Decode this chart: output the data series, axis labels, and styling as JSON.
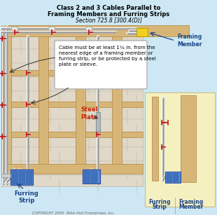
{
  "title_line1": "Class 2 and 3 Cables Parallel to",
  "title_line2": "Framing Members and Furring Strips",
  "title_line3": "Section 725.8 [300.4(D)]",
  "bg_color": "#cde8f4",
  "wood_color": "#d8b87a",
  "wood_edge": "#b89050",
  "wall_bg": "#e0d8c8",
  "mortar_color": "#b8b0a0",
  "cable_color": "#e0e0e0",
  "cable_edge": "#999999",
  "box_color": "#5588cc",
  "box_edge": "#2244aa",
  "steel_color": "#b0b8c0",
  "steel_edge": "#808890",
  "yellow_connector": "#f0d020",
  "yellow_conn_edge": "#c0a000",
  "right_panel_bg": "#f5f0c0",
  "right_panel_edge": "#c8c080",
  "callout_bg": "#ffffff",
  "callout_edge": "#888888",
  "title_color": "#000000",
  "annotation_color": "#1a4488",
  "red_color": "#cc1111",
  "steel_label_color": "#cc2200",
  "copyright_color": "#666666",
  "framing_label": "Framing\nMember",
  "furring_label": "Furring\nStrip",
  "steel_plate_label": "Steel\nPlate",
  "cable_note": "Cable must be at least 1¼ in. from the\nnearest edge of a framing member or\nfurring strip, or be protected by a steel\nplate or sleeve.",
  "copyright": "COPYRIGHT 2005  Mike Holt Enterprises, Inc."
}
